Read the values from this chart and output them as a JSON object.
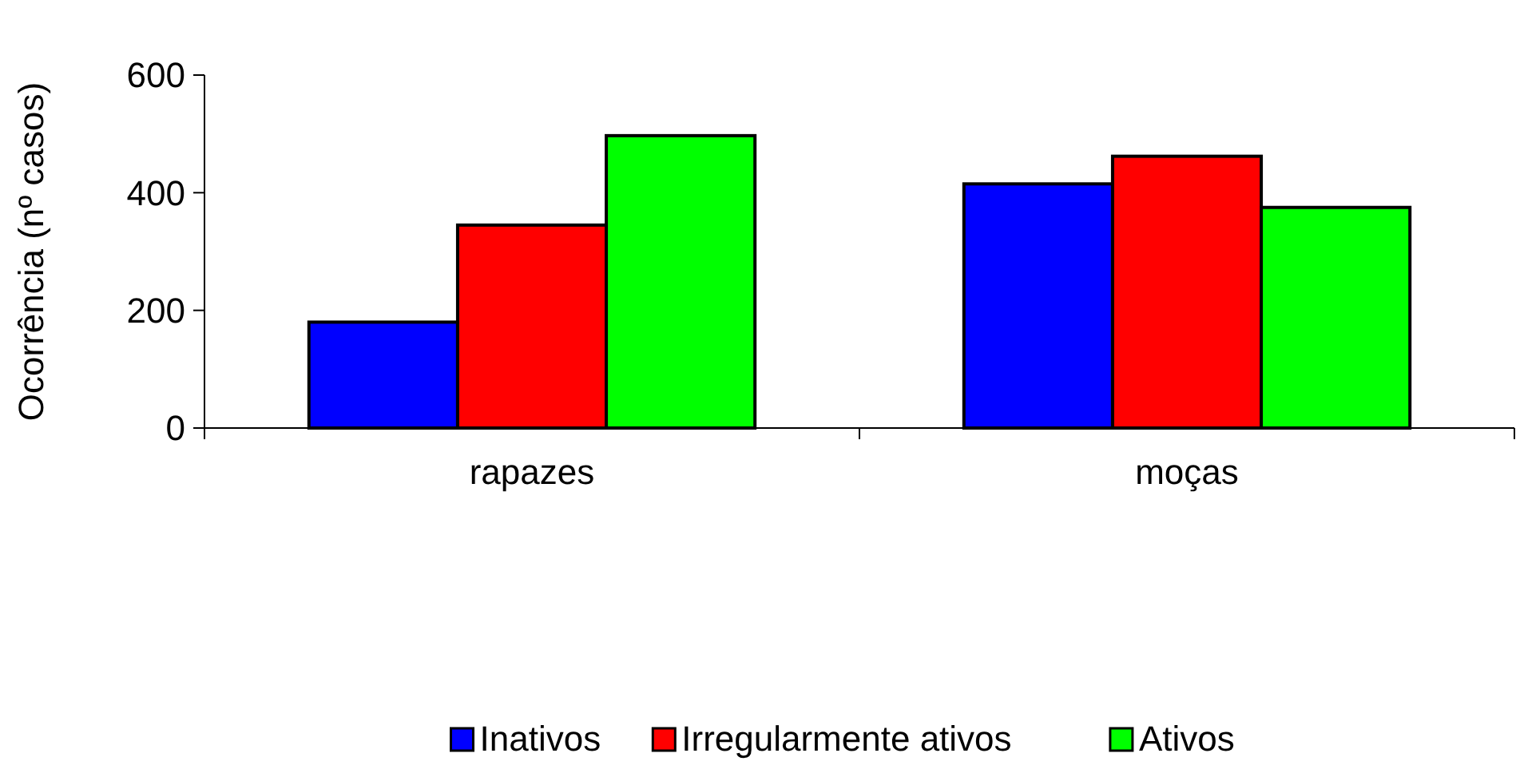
{
  "chart_data": {
    "type": "bar",
    "ylabel": "Ocorrência (nº casos)",
    "categories": [
      "rapazes",
      "moças"
    ],
    "series": [
      {
        "name": "Inativos",
        "color": "#0000ff",
        "values": [
          180,
          415
        ]
      },
      {
        "name": "Irregularmente ativos",
        "color": "#ff0000",
        "values": [
          345,
          462
        ]
      },
      {
        "name": "Ativos",
        "color": "#00ff00",
        "values": [
          497,
          375
        ]
      }
    ],
    "ylim": [
      0,
      600
    ],
    "yticks": [
      0,
      200,
      400,
      600
    ],
    "legend": "bottom",
    "grid": false
  }
}
